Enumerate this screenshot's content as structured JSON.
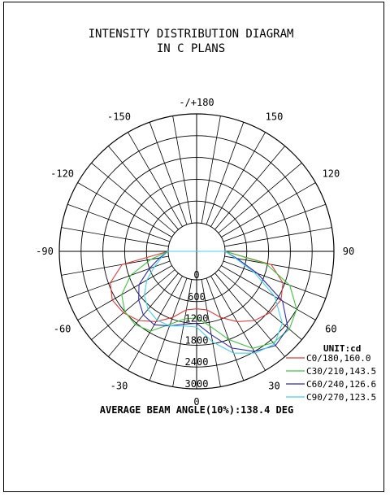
{
  "chart_data": {
    "type": "polar",
    "title_line1": "INTENSITY DISTRIBUTION DIAGRAM",
    "title_line2": "IN C PLANS",
    "unit_label": "UNIT:cd",
    "angle_labels": [
      {
        "deg": 180,
        "text": "-/+180"
      },
      {
        "deg": -150,
        "text": "-150"
      },
      {
        "deg": 150,
        "text": "150"
      },
      {
        "deg": -120,
        "text": "-120"
      },
      {
        "deg": 120,
        "text": "120"
      },
      {
        "deg": -90,
        "text": "-90"
      },
      {
        "deg": 90,
        "text": "90"
      },
      {
        "deg": -60,
        "text": "-60"
      },
      {
        "deg": 60,
        "text": "60"
      },
      {
        "deg": -30,
        "text": "-30"
      },
      {
        "deg": 30,
        "text": "30"
      },
      {
        "deg": 0,
        "text": "0"
      }
    ],
    "radial_ticks": [
      0,
      600,
      1200,
      1800,
      2400,
      3000
    ],
    "r_max": 3000,
    "footer": "AVERAGE BEAM ANGLE(10%):138.4 DEG",
    "series": [
      {
        "name": "C0/180,160.0",
        "color": "#e23a3a",
        "points": [
          [
            -90,
            0
          ],
          [
            -80,
            1300
          ],
          [
            -70,
            1750
          ],
          [
            -60,
            1900
          ],
          [
            -50,
            1850
          ],
          [
            -40,
            1700
          ],
          [
            -30,
            1450
          ],
          [
            -20,
            1150
          ],
          [
            -10,
            850
          ],
          [
            0,
            800
          ],
          [
            10,
            850
          ],
          [
            20,
            1150
          ],
          [
            30,
            1450
          ],
          [
            40,
            1700
          ],
          [
            50,
            1850
          ],
          [
            60,
            1900
          ],
          [
            70,
            1750
          ],
          [
            80,
            1300
          ],
          [
            90,
            0
          ]
        ]
      },
      {
        "name": "C30/210,143.5",
        "color": "#3cc43c",
        "points": [
          [
            -90,
            0
          ],
          [
            -80,
            500
          ],
          [
            -70,
            1150
          ],
          [
            -60,
            1600
          ],
          [
            -50,
            1800
          ],
          [
            -40,
            1850
          ],
          [
            -30,
            1750
          ],
          [
            -20,
            1350
          ],
          [
            -10,
            1100
          ],
          [
            0,
            1050
          ],
          [
            10,
            1300
          ],
          [
            20,
            1800
          ],
          [
            30,
            2300
          ],
          [
            40,
            2500
          ],
          [
            50,
            2550
          ],
          [
            60,
            2400
          ],
          [
            70,
            1950
          ],
          [
            80,
            1150
          ],
          [
            90,
            0
          ]
        ]
      },
      {
        "name": "C60/240,126.6",
        "color": "#2b2bb5",
        "points": [
          [
            -90,
            0
          ],
          [
            -80,
            250
          ],
          [
            -70,
            600
          ],
          [
            -60,
            1050
          ],
          [
            -50,
            1300
          ],
          [
            -40,
            1500
          ],
          [
            -30,
            1550
          ],
          [
            -20,
            1400
          ],
          [
            -10,
            1250
          ],
          [
            0,
            1200
          ],
          [
            10,
            1550
          ],
          [
            20,
            2050
          ],
          [
            30,
            2400
          ],
          [
            40,
            2600
          ],
          [
            50,
            2500
          ],
          [
            60,
            1950
          ],
          [
            70,
            1000
          ],
          [
            80,
            350
          ],
          [
            90,
            0
          ]
        ]
      },
      {
        "name": "C90/270,123.5",
        "color": "#44d2ee",
        "points": [
          [
            -90,
            0
          ],
          [
            -80,
            200
          ],
          [
            -70,
            450
          ],
          [
            -60,
            800
          ],
          [
            -50,
            1100
          ],
          [
            -40,
            1300
          ],
          [
            -30,
            1400
          ],
          [
            -20,
            1400
          ],
          [
            -10,
            1300
          ],
          [
            0,
            1300
          ],
          [
            10,
            1750
          ],
          [
            20,
            2200
          ],
          [
            30,
            2450
          ],
          [
            40,
            2550
          ],
          [
            50,
            2300
          ],
          [
            60,
            1700
          ],
          [
            70,
            900
          ],
          [
            80,
            300
          ],
          [
            90,
            0
          ]
        ]
      }
    ]
  }
}
